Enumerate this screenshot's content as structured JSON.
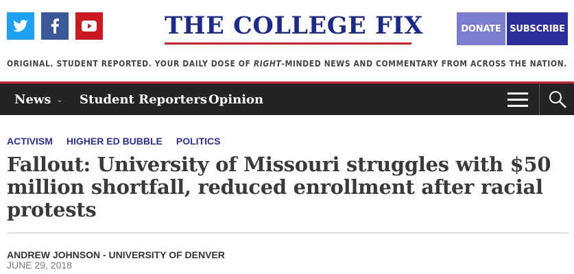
{
  "social": {
    "twitter_icon": "twitter-icon",
    "facebook_icon": "facebook-icon",
    "youtube_icon": "youtube-icon"
  },
  "logo": {
    "text": "THE COLLEGE FIX"
  },
  "buttons": {
    "donate": "DONATE",
    "subscribe": "SUBSCRIBE"
  },
  "tagline": {
    "before": "ORIGINAL. STUDENT REPORTED. YOUR DAILY DOSE OF ",
    "emphasis": "RIGHT",
    "after": "-MINDED NEWS AND COMMENTARY FROM ACROSS THE NATION."
  },
  "nav": {
    "items": [
      {
        "label": "News"
      },
      {
        "label": "Student Reporters"
      },
      {
        "label": "Opinion"
      }
    ],
    "menu_icon": "hamburger-menu-icon",
    "search_icon": "search-icon"
  },
  "article": {
    "categories": [
      "ACTIVISM",
      "HIGHER ED BUBBLE",
      "POLITICS"
    ],
    "headline": "Fallout: University of Missouri struggles with $50 million shortfall, reduced enrollment after racial protests",
    "author": "ANDREW JOHNSON - UNIVERSITY OF DENVER",
    "date": "JUNE 29, 2018"
  },
  "colors": {
    "twitter": "#1da1f2",
    "facebook": "#3b5998",
    "youtube": "#cc181e",
    "brand_blue": "#1b2a8c",
    "accent_red": "#d8202a",
    "donate": "#7b7ed0",
    "subscribe": "#2b2f9e",
    "nav_bg": "#242424"
  }
}
